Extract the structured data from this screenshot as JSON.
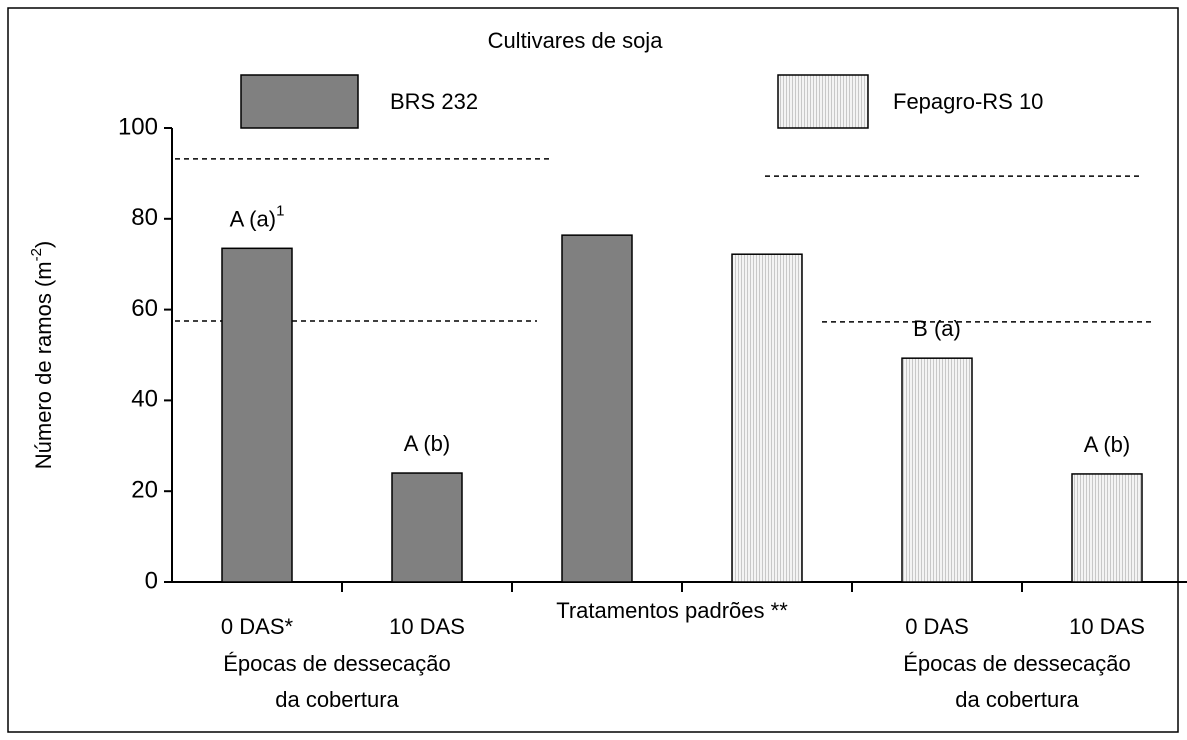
{
  "chart_data": {
    "type": "bar",
    "legend_title": "Cultivares de soja",
    "ylabel": [
      "Número de ramos (m",
      "-2",
      ")"
    ],
    "categories": [
      "0 DAS*",
      "10 DAS",
      "Tratamentos padrões **",
      null,
      "0 DAS",
      "10 DAS"
    ],
    "group_labels": [
      [
        "Épocas de dessecação",
        "da cobertura"
      ],
      [
        "Épocas de dessecação",
        "da cobertura"
      ]
    ],
    "series": [
      {
        "name": "BRS 232",
        "color": "#808080",
        "pattern": "solid",
        "values": [
          73.5,
          24,
          76.4,
          null,
          null,
          null
        ],
        "labels": [
          "A (a)",
          "A (b)",
          null,
          null,
          null,
          null
        ],
        "label_superscripts": [
          "1",
          null,
          null,
          null,
          null,
          null
        ]
      },
      {
        "name": "Fepagro-RS 10",
        "color": "#ececec",
        "pattern": "dotted",
        "values": [
          null,
          null,
          null,
          72.2,
          49.3,
          23.8
        ],
        "labels": [
          null,
          null,
          null,
          null,
          "B (a)",
          "A (b)"
        ],
        "label_superscripts": [
          null,
          null,
          null,
          null,
          null,
          null
        ]
      }
    ],
    "reference_lines": [
      93.2,
      57.5,
      89.4,
      57.3
    ],
    "ylim": [
      0,
      100
    ],
    "yticks": [
      0,
      20,
      40,
      60,
      80,
      100
    ]
  }
}
